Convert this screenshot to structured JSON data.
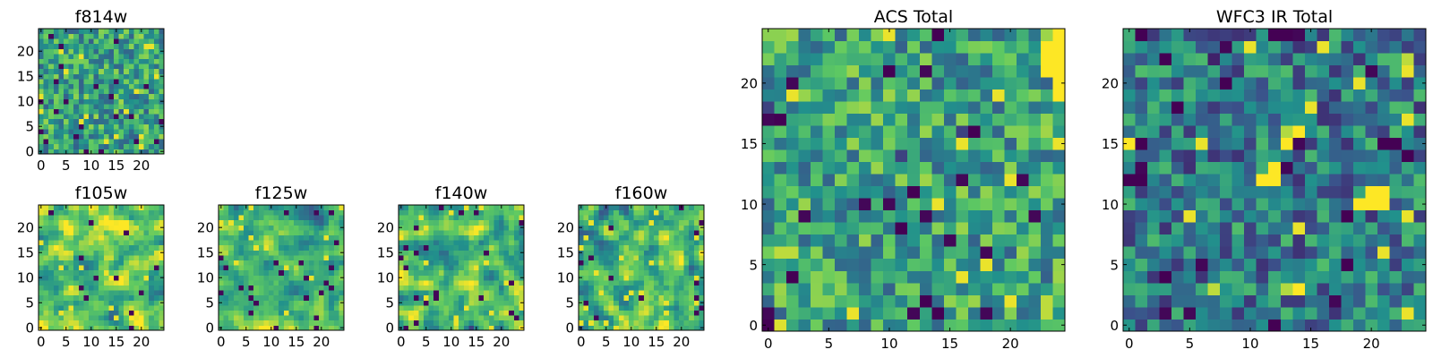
{
  "figure": {
    "background": "#ffffff",
    "colormap": "viridis",
    "colormap_stops": [
      "#440154",
      "#3b528b",
      "#21918c",
      "#5ec962",
      "#fde725"
    ]
  },
  "chart_data": [
    {
      "type": "heatmap",
      "title": "f814w",
      "grid": [
        25,
        25
      ],
      "xlim": [
        0,
        25
      ],
      "ylim": [
        0,
        25
      ],
      "xticks": [
        0,
        5,
        10,
        15,
        20
      ],
      "yticks": [
        0,
        5,
        10,
        15,
        20
      ],
      "xlabel": "",
      "ylabel": "",
      "pattern": "noise",
      "baseline": 0.58,
      "seed": 814
    },
    {
      "type": "heatmap",
      "title": "f105w",
      "grid": [
        25,
        25
      ],
      "xlim": [
        0,
        25
      ],
      "ylim": [
        0,
        25
      ],
      "xticks": [
        0,
        5,
        10,
        15,
        20
      ],
      "yticks": [
        0,
        5,
        10,
        15,
        20
      ],
      "xlabel": "",
      "ylabel": "",
      "pattern": "smooth",
      "baseline": 0.7,
      "seed": 105
    },
    {
      "type": "heatmap",
      "title": "f125w",
      "grid": [
        25,
        25
      ],
      "xlim": [
        0,
        25
      ],
      "ylim": [
        0,
        25
      ],
      "xticks": [
        0,
        5,
        10,
        15,
        20
      ],
      "yticks": [
        0,
        5,
        10,
        15,
        20
      ],
      "xlabel": "",
      "ylabel": "",
      "pattern": "smooth",
      "baseline": 0.7,
      "seed": 125
    },
    {
      "type": "heatmap",
      "title": "f140w",
      "grid": [
        25,
        25
      ],
      "xlim": [
        0,
        25
      ],
      "ylim": [
        0,
        25
      ],
      "xticks": [
        0,
        5,
        10,
        15,
        20
      ],
      "yticks": [
        0,
        5,
        10,
        15,
        20
      ],
      "xlabel": "",
      "ylabel": "",
      "pattern": "smooth",
      "baseline": 0.62,
      "seed": 140
    },
    {
      "type": "heatmap",
      "title": "f160w",
      "grid": [
        25,
        25
      ],
      "xlim": [
        0,
        25
      ],
      "ylim": [
        0,
        25
      ],
      "xticks": [
        0,
        5,
        10,
        15,
        20
      ],
      "yticks": [
        0,
        5,
        10,
        15,
        20
      ],
      "xlabel": "",
      "ylabel": "",
      "pattern": "smooth",
      "baseline": 0.68,
      "seed": 160
    },
    {
      "type": "heatmap",
      "title": "ACS Total",
      "grid": [
        25,
        25
      ],
      "xlim": [
        0,
        25
      ],
      "ylim": [
        0,
        25
      ],
      "xticks": [
        0,
        5,
        10,
        15,
        20
      ],
      "yticks": [
        0,
        5,
        10,
        15,
        20
      ],
      "xlabel": "",
      "ylabel": "",
      "pattern": "noise",
      "baseline": 0.58,
      "seed": 7,
      "cells": [
        {
          "x": 24,
          "y": 19,
          "v": 1.0
        },
        {
          "x": 24,
          "y": 20,
          "v": 1.0
        },
        {
          "x": 24,
          "y": 21,
          "v": 1.0
        },
        {
          "x": 24,
          "y": 22,
          "v": 1.0
        },
        {
          "x": 24,
          "y": 23,
          "v": 1.0
        },
        {
          "x": 24,
          "y": 24,
          "v": 1.0
        },
        {
          "x": 23,
          "y": 21,
          "v": 1.0
        },
        {
          "x": 23,
          "y": 22,
          "v": 1.0
        },
        {
          "x": 23,
          "y": 23,
          "v": 1.0
        },
        {
          "x": 0,
          "y": 24,
          "v": 0.82
        },
        {
          "x": 1,
          "y": 24,
          "v": 0.82
        },
        {
          "x": 1,
          "y": 23,
          "v": 0.82
        },
        {
          "x": 0,
          "y": 0,
          "v": 0.0
        },
        {
          "x": 1,
          "y": 0,
          "v": 0.95
        },
        {
          "x": 1,
          "y": 6,
          "v": 0.9
        },
        {
          "x": 2,
          "y": 6,
          "v": 0.9
        },
        {
          "x": 2,
          "y": 4,
          "v": 0.0
        },
        {
          "x": 1,
          "y": 17,
          "v": 0.0
        },
        {
          "x": 0,
          "y": 18,
          "v": 0.2
        },
        {
          "x": 10,
          "y": 21,
          "v": 0.0
        },
        {
          "x": 11,
          "y": 8,
          "v": 0.0
        },
        {
          "x": 14,
          "y": 1,
          "v": 0.0
        },
        {
          "x": 13,
          "y": 2,
          "v": 0.0
        },
        {
          "x": 17,
          "y": 16,
          "v": 0.0
        },
        {
          "x": 16,
          "y": 16,
          "v": 0.2
        },
        {
          "x": 11,
          "y": 14,
          "v": 0.2
        },
        {
          "x": 14,
          "y": 24,
          "v": 0.0
        },
        {
          "x": 12,
          "y": 11,
          "v": 0.0
        },
        {
          "x": 23,
          "y": 1,
          "v": 0.9
        },
        {
          "x": 23,
          "y": 2,
          "v": 0.9
        }
      ]
    },
    {
      "type": "heatmap",
      "title": "WFC3 IR Total",
      "grid": [
        25,
        25
      ],
      "xlim": [
        0,
        25
      ],
      "ylim": [
        0,
        25
      ],
      "xticks": [
        0,
        5,
        10,
        15,
        20
      ],
      "yticks": [
        0,
        5,
        10,
        15,
        20
      ],
      "xlabel": "",
      "ylabel": "",
      "pattern": "noise",
      "baseline": 0.42,
      "seed": 31,
      "cells": [
        {
          "x": 0,
          "y": 15,
          "v": 1.0
        },
        {
          "x": 1,
          "y": 15,
          "v": 0.0
        },
        {
          "x": 0,
          "y": 12,
          "v": 0.0
        },
        {
          "x": 1,
          "y": 12,
          "v": 0.0
        },
        {
          "x": 12,
          "y": 13,
          "v": 1.0
        },
        {
          "x": 11,
          "y": 12,
          "v": 1.0
        },
        {
          "x": 12,
          "y": 12,
          "v": 1.0
        },
        {
          "x": 13,
          "y": 15,
          "v": 1.0
        },
        {
          "x": 14,
          "y": 16,
          "v": 1.0
        },
        {
          "x": 13,
          "y": 16,
          "v": 0.88
        },
        {
          "x": 20,
          "y": 11,
          "v": 1.0
        },
        {
          "x": 21,
          "y": 11,
          "v": 1.0
        },
        {
          "x": 20,
          "y": 10,
          "v": 1.0
        },
        {
          "x": 21,
          "y": 10,
          "v": 1.0
        },
        {
          "x": 19,
          "y": 10,
          "v": 1.0
        },
        {
          "x": 21,
          "y": 15,
          "v": 0.0
        },
        {
          "x": 22,
          "y": 15,
          "v": 0.0
        },
        {
          "x": 23,
          "y": 14,
          "v": 0.0
        },
        {
          "x": 18,
          "y": 9,
          "v": 0.0
        },
        {
          "x": 8,
          "y": 20,
          "v": 0.0
        },
        {
          "x": 4,
          "y": 18,
          "v": 0.0
        },
        {
          "x": 3,
          "y": 22,
          "v": 0.0
        },
        {
          "x": 3,
          "y": 4,
          "v": 0.0
        },
        {
          "x": 14,
          "y": 3,
          "v": 1.0
        },
        {
          "x": 13,
          "y": 3,
          "v": 0.88
        },
        {
          "x": 7,
          "y": 3,
          "v": 0.9
        },
        {
          "x": 12,
          "y": 0,
          "v": 0.0
        },
        {
          "x": 18,
          "y": 5,
          "v": 0.0
        },
        {
          "x": 23,
          "y": 22,
          "v": 0.9
        },
        {
          "x": 12,
          "y": 24,
          "v": 0.0
        },
        {
          "x": 13,
          "y": 24,
          "v": 0.0
        },
        {
          "x": 1,
          "y": 24,
          "v": 0.0
        },
        {
          "x": 7,
          "y": 22,
          "v": 0.1
        }
      ]
    }
  ]
}
